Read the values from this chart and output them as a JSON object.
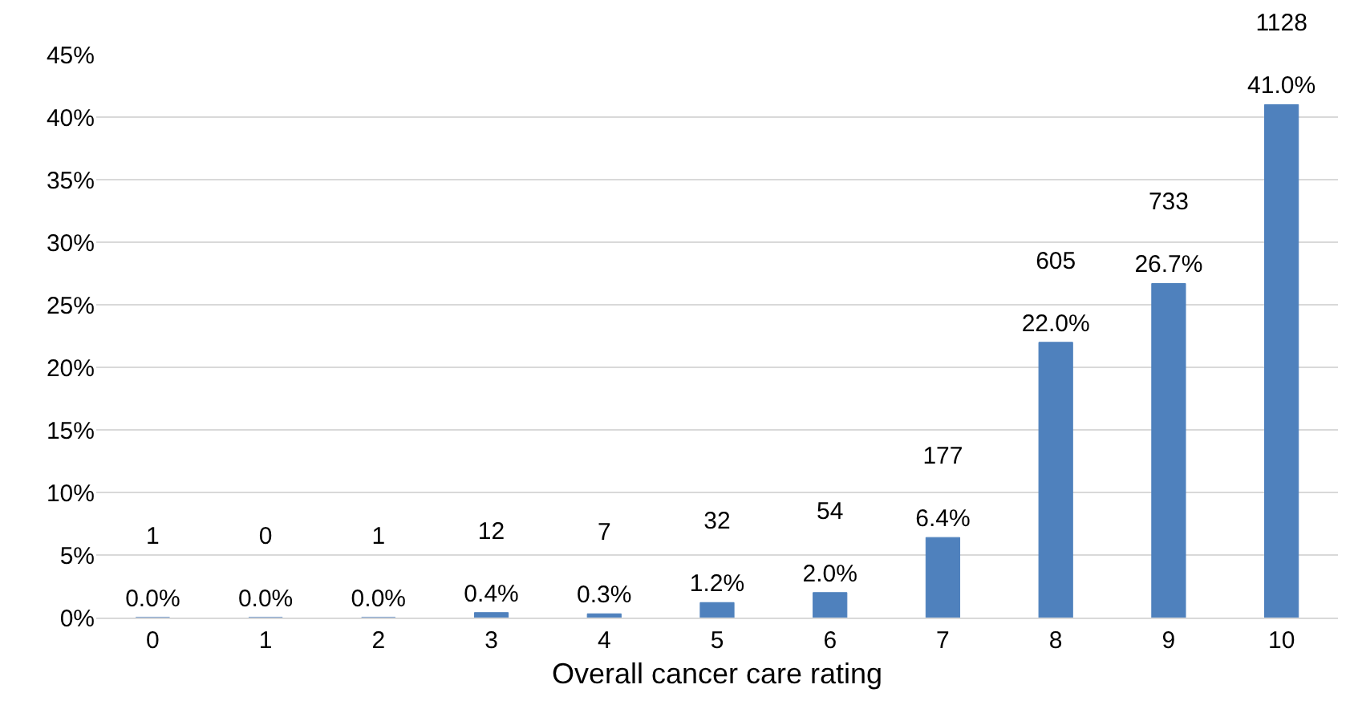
{
  "chart_data": {
    "type": "bar",
    "xlabel": "Overall cancer care rating",
    "categories": [
      "0",
      "1",
      "2",
      "3",
      "4",
      "5",
      "6",
      "7",
      "8",
      "9",
      "10"
    ],
    "values": [
      0.0,
      0.0,
      0.0,
      0.4,
      0.3,
      1.2,
      2.0,
      6.4,
      22.0,
      26.7,
      41.0
    ],
    "value_labels": [
      "1\n0.0%",
      "0\n0.0%",
      "1\n0.0%",
      "12\n0.4%",
      "7\n0.3%",
      "32\n1.2%",
      "54\n2.0%",
      "177\n6.4%",
      "605\n22.0%",
      "733\n26.7%",
      "1128\n41.0%"
    ],
    "color": "#4f81bd",
    "ylim": [
      0,
      45
    ],
    "yticks": [
      {
        "value": 0,
        "label": "0%"
      },
      {
        "value": 5,
        "label": "5%"
      },
      {
        "value": 10,
        "label": "10%"
      },
      {
        "value": 15,
        "label": "15%"
      },
      {
        "value": 20,
        "label": "20%"
      },
      {
        "value": 25,
        "label": "25%"
      },
      {
        "value": 30,
        "label": "30%"
      },
      {
        "value": 35,
        "label": "35%"
      },
      {
        "value": 40,
        "label": "40%"
      },
      {
        "value": 45,
        "label": "45%"
      }
    ],
    "grid": "y",
    "legend": false
  }
}
